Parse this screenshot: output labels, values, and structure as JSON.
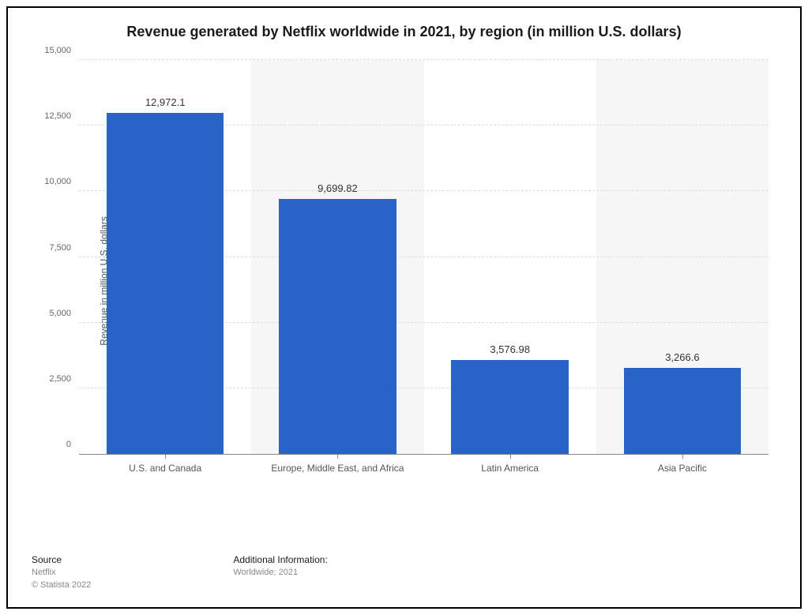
{
  "chart": {
    "type": "bar",
    "title": "Revenue generated by Netflix worldwide in 2021, by region (in million U.S. dollars)",
    "title_fontsize": 18,
    "title_color": "#1a1a1a",
    "ylabel": "Revenue in million U.S. dollars",
    "ylabel_fontsize": 12,
    "ylim": [
      0,
      15000
    ],
    "ytick_step": 2500,
    "yticks": [
      {
        "value": 0,
        "label": "0"
      },
      {
        "value": 2500,
        "label": "2,500"
      },
      {
        "value": 5000,
        "label": "5,000"
      },
      {
        "value": 7500,
        "label": "7,500"
      },
      {
        "value": 10000,
        "label": "10,000"
      },
      {
        "value": 12500,
        "label": "12,500"
      },
      {
        "value": 15000,
        "label": "15,000"
      }
    ],
    "categories": [
      "U.S. and Canada",
      "Europe, Middle East, and Africa",
      "Latin America",
      "Asia Pacific"
    ],
    "values": [
      12972.1,
      9699.82,
      3576.98,
      3266.6
    ],
    "value_labels": [
      "12,972.1",
      "9,699.82",
      "3,576.98",
      "3,266.6"
    ],
    "bar_color": "#2963c8",
    "bar_width": 0.68,
    "background_color": "#ffffff",
    "alt_stripe_color": "#f6f6f6",
    "grid_color": "#dcdcdc",
    "axis_color": "#888888",
    "label_color": "#555555",
    "value_label_fontsize": 13,
    "tick_label_fontsize": 11
  },
  "footer": {
    "source_heading": "Source",
    "source_line1": "Netflix",
    "source_line2": "© Statista 2022",
    "info_heading": "Additional Information:",
    "info_line1": "Worldwide; 2021"
  }
}
